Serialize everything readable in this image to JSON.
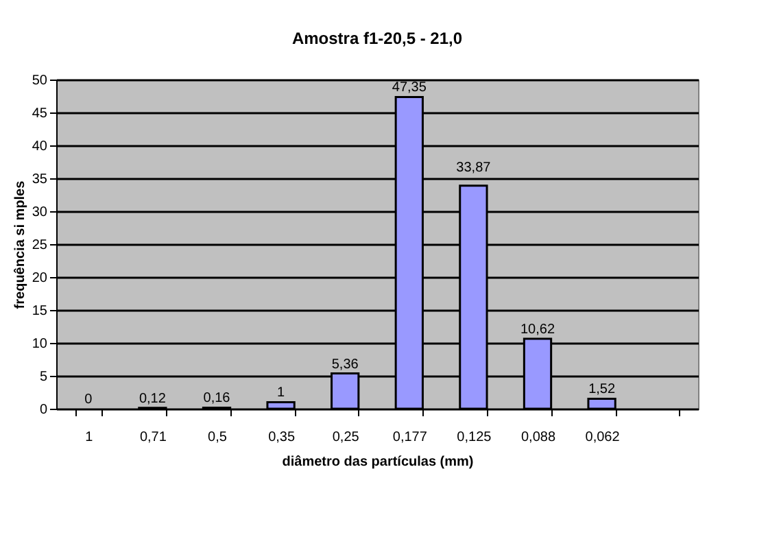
{
  "chart_data": {
    "type": "bar",
    "title": "Amostra f1-20,5 - 21,0",
    "xlabel": "diâmetro das partículas (mm)",
    "ylabel": "frequência si mples",
    "categories": [
      "1",
      "0,71",
      "0,5",
      "0,35",
      "0,25",
      "0,177",
      "0,125",
      "0,088",
      "0,062",
      null
    ],
    "values": [
      0,
      0.12,
      0.16,
      1,
      5.36,
      47.35,
      33.87,
      10.62,
      1.52,
      null
    ],
    "value_labels": [
      "0",
      "0,12",
      "0,16",
      "1",
      "5,36",
      "47,35",
      "33,87",
      "10,62",
      "1,52",
      null
    ],
    "color": "#9999ff",
    "ylim": [
      0,
      50
    ],
    "yticks": [
      0,
      5,
      10,
      15,
      20,
      25,
      30,
      35,
      40,
      45,
      50
    ],
    "grid": "y"
  }
}
